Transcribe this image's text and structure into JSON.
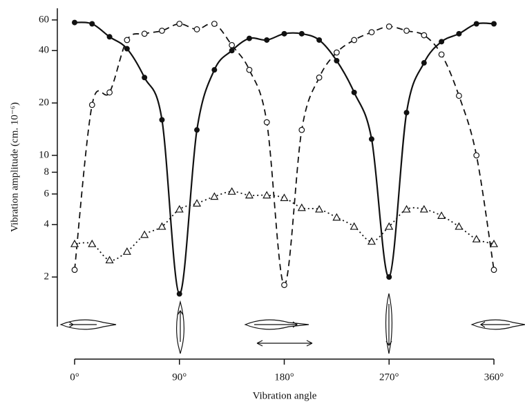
{
  "chart_data": {
    "type": "line",
    "xlabel": "Vibration angle",
    "ylabel": "Vibration amplitude (cm. 10⁻⁶)",
    "x": [
      0,
      15,
      30,
      45,
      60,
      75,
      90,
      105,
      120,
      135,
      150,
      165,
      180,
      195,
      210,
      225,
      240,
      255,
      270,
      285,
      300,
      315,
      330,
      345,
      360
    ],
    "series": [
      {
        "marker": "filled-circle",
        "line": "solid",
        "color": "#111111",
        "values": [
          58,
          57,
          48,
          41,
          28,
          16,
          1.6,
          14,
          31,
          40,
          47,
          46,
          50,
          50,
          46,
          35,
          23,
          12.4,
          2,
          17.6,
          34,
          45,
          50,
          57,
          57
        ]
      },
      {
        "marker": "open-circle",
        "line": "dashed",
        "color": "#111111",
        "values": [
          2.2,
          19.5,
          23,
          46,
          50,
          52,
          57,
          53,
          57,
          43,
          31,
          15.5,
          1.8,
          14,
          28,
          39,
          46,
          51,
          55,
          52,
          49,
          38,
          22,
          10,
          2.2
        ]
      },
      {
        "marker": "open-triangle",
        "line": "dotted",
        "color": "#111111",
        "values": [
          3.1,
          3.1,
          2.5,
          2.8,
          3.5,
          3.9,
          4.9,
          5.3,
          5.8,
          6.2,
          5.9,
          5.9,
          5.7,
          5.0,
          4.9,
          4.4,
          3.9,
          3.2,
          3.9,
          4.9,
          4.9,
          4.5,
          3.9,
          3.3,
          3.1
        ]
      }
    ],
    "xlim": [
      0,
      360
    ],
    "xticks": [
      {
        "value": 0,
        "label": "0°"
      },
      {
        "value": 90,
        "label": "90°"
      },
      {
        "value": 180,
        "label": "180°"
      },
      {
        "value": 270,
        "label": "270°"
      },
      {
        "value": 360,
        "label": "360°"
      }
    ],
    "ylim": [
      1,
      70
    ],
    "log_y": true,
    "yticks": [
      2,
      4,
      6,
      8,
      10,
      20,
      40,
      60
    ],
    "grid": false
  }
}
